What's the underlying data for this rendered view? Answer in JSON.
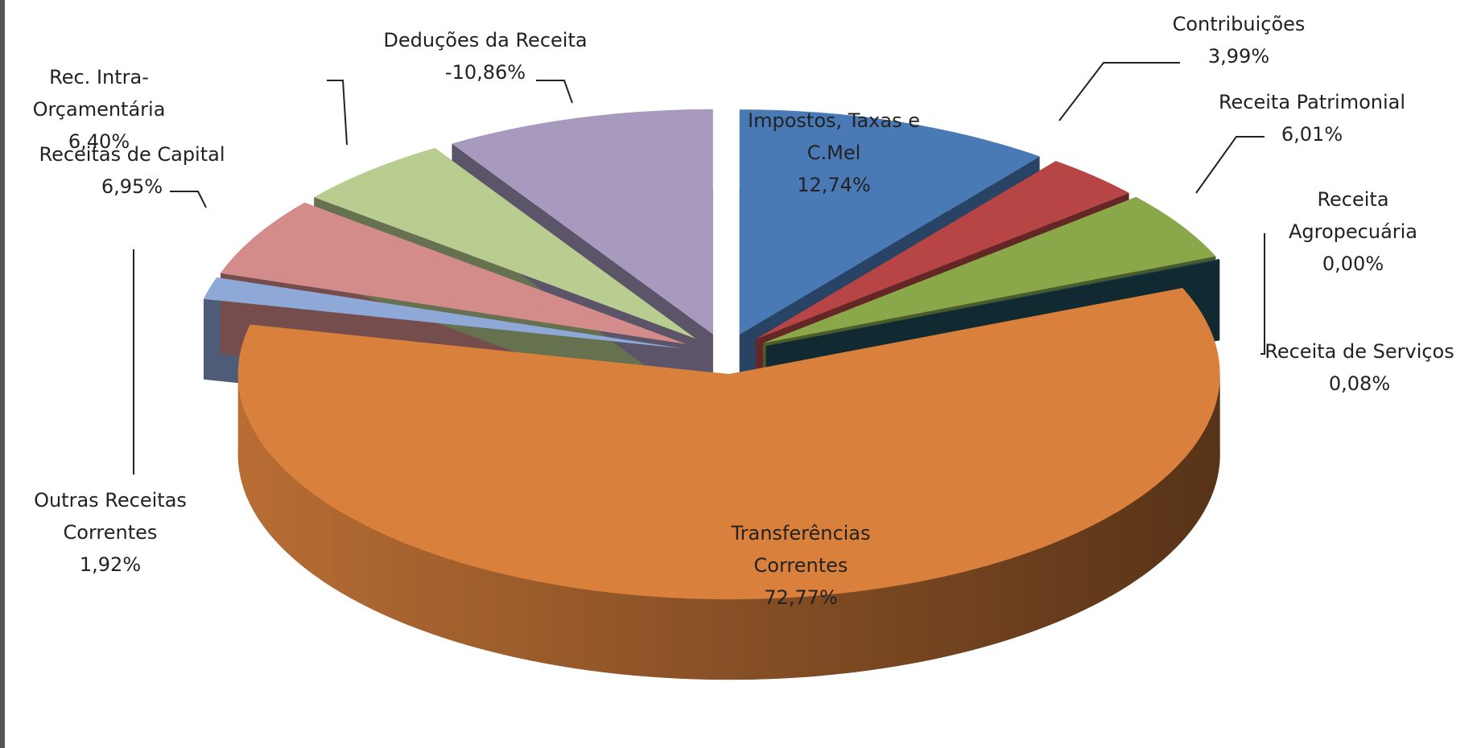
{
  "chart_data": {
    "type": "pie3d",
    "categories": [
      "Impostos, Taxas e C.Mel",
      "Contribuições",
      "Receita Patrimonial",
      "Receita Agropecuária",
      "Receita de Serviços",
      "Transferências Correntes",
      "Outras Receitas Correntes",
      "Receitas de Capital",
      "Rec. Intra-Orçamentária",
      "Deduções da Receita"
    ],
    "values": [
      12.74,
      3.99,
      6.01,
      0.0,
      0.08,
      72.77,
      1.92,
      6.95,
      6.4,
      -10.86
    ],
    "value_labels": [
      "12,74%",
      "3,99%",
      "6,01%",
      "0,00%",
      "0,08%",
      "72,77%",
      "1,92%",
      "6,95%",
      "6,40%",
      "-10,86%"
    ],
    "colors": [
      "#4a7ab5",
      "#b84545",
      "#8aa84a",
      "#7b5ea8",
      "#1e4b57",
      "#d9803c",
      "#8ea8d8",
      "#d38c8a",
      "#b9cd90",
      "#a899bf"
    ]
  }
}
